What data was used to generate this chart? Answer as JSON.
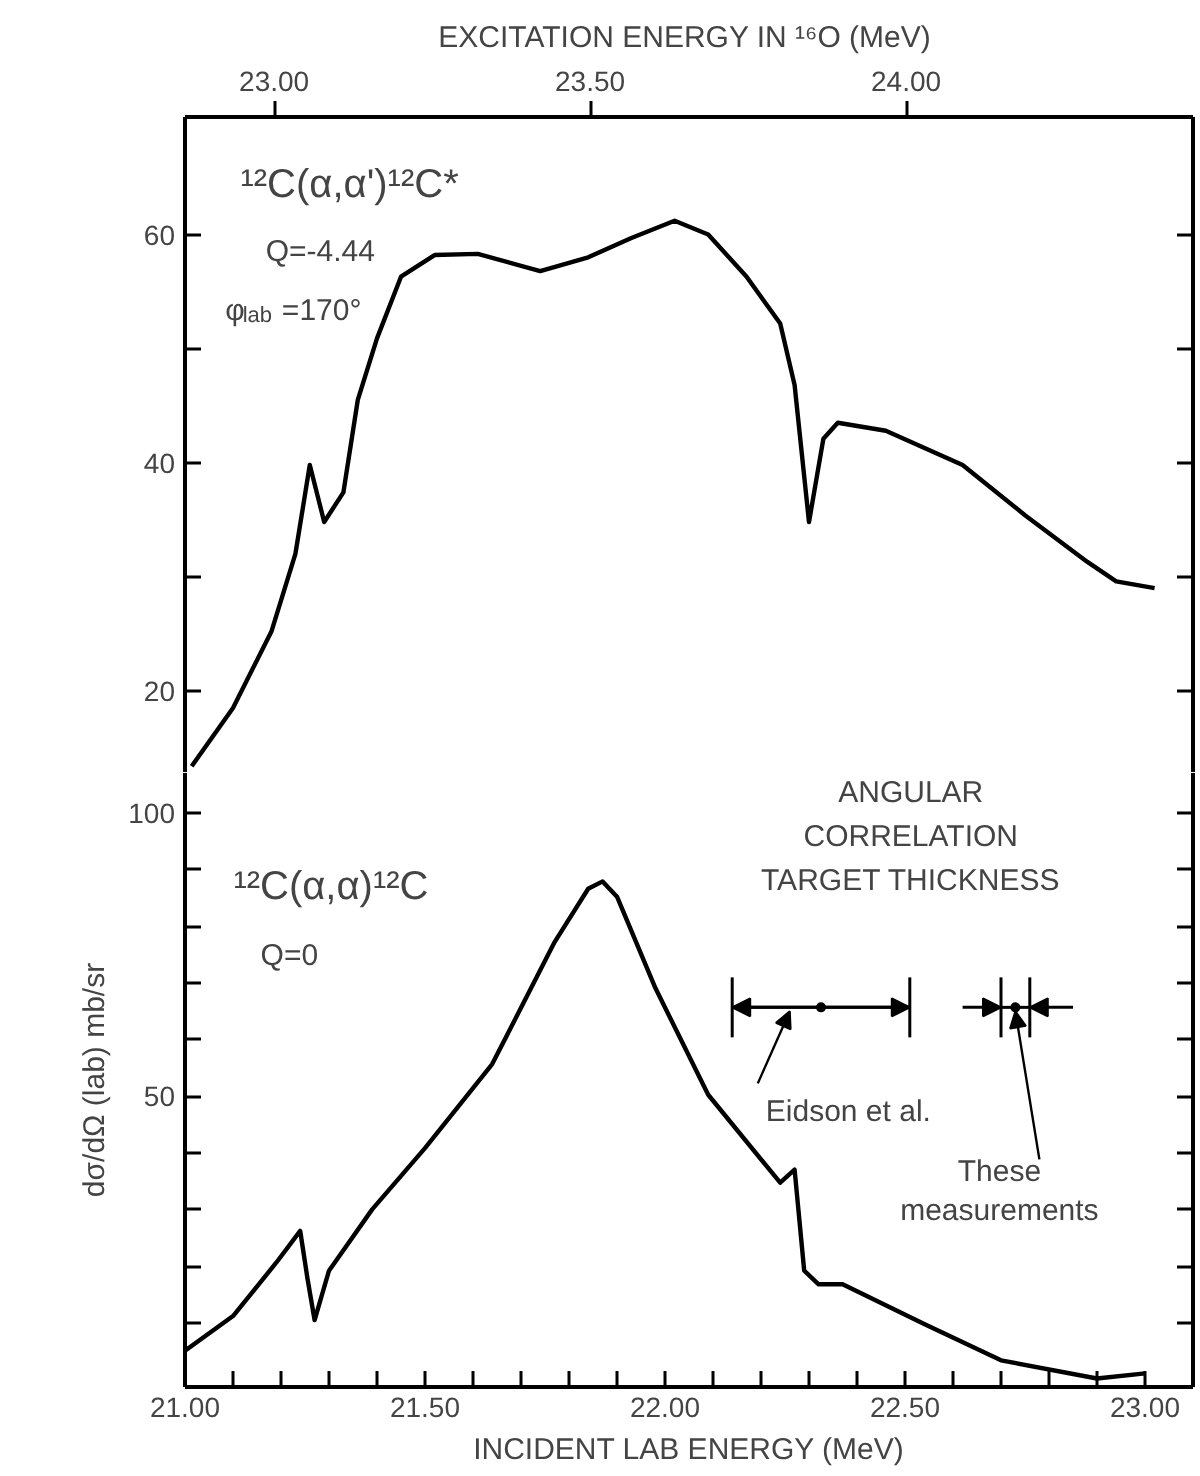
{
  "chart_data": [
    {
      "type": "line",
      "x2label": "EXCITATION ENERGY IN ¹⁶O  (MeV)",
      "xlim": [
        21.0,
        23.1
      ],
      "x2lim": [
        22.859,
        24.454
      ],
      "x2ticks": [
        {
          "value": 23.0,
          "label": "23.00"
        },
        {
          "value": 23.5,
          "label": "23.50"
        },
        {
          "value": 24.0,
          "label": "24.00"
        }
      ],
      "ylim": [
        12.8,
        70.3
      ],
      "yticks": [
        20,
        {
          "value": 30,
          "label": null
        },
        40,
        {
          "value": 50,
          "label": null
        },
        60
      ],
      "tick_labels": "y",
      "annotations": [
        "¹²C(α,α')¹²C*",
        "Q=-4.44",
        "φ$_{lab}$=170°"
      ],
      "series": [
        {
          "color": "#000000",
          "x": [
            21.014,
            21.1,
            21.18,
            21.23,
            21.26,
            21.29,
            21.33,
            21.36,
            21.4,
            21.45,
            21.52,
            21.61,
            21.74,
            21.84,
            21.93,
            22.02,
            22.09,
            22.17,
            22.24,
            22.27,
            22.3,
            22.33,
            22.36,
            22.46,
            22.62,
            22.75,
            22.88,
            22.94,
            23.02
          ],
          "values": [
            13.4,
            18.5,
            25.2,
            32.0,
            39.8,
            34.8,
            37.4,
            45.5,
            50.9,
            56.3,
            58.2,
            58.3,
            56.8,
            58.0,
            59.7,
            61.2,
            60.0,
            56.3,
            52.2,
            46.8,
            34.8,
            42.1,
            43.5,
            42.8,
            39.8,
            35.4,
            31.3,
            29.6,
            29.0
          ]
        }
      ]
    },
    {
      "type": "line",
      "xlabel": "INCIDENT LAB ENERGY (MeV)",
      "ylabel": "dσ/dΩ (lab) mb/sr",
      "xlim": [
        21.0,
        23.1
      ],
      "xticks": [
        {
          "value": 21.0,
          "label": "21.00"
        },
        {
          "value": 21.1,
          "label": null
        },
        {
          "value": 21.2,
          "label": null
        },
        {
          "value": 21.3,
          "label": null
        },
        {
          "value": 21.4,
          "label": null
        },
        {
          "value": 21.5,
          "label": "21.50"
        },
        {
          "value": 21.6,
          "label": null
        },
        {
          "value": 21.7,
          "label": null
        },
        {
          "value": 21.8,
          "label": null
        },
        {
          "value": 21.9,
          "label": null
        },
        {
          "value": 22.0,
          "label": "22.00"
        },
        {
          "value": 22.1,
          "label": null
        },
        {
          "value": 22.2,
          "label": null
        },
        {
          "value": 22.3,
          "label": null
        },
        {
          "value": 22.4,
          "label": null
        },
        {
          "value": 22.5,
          "label": "22.50"
        },
        {
          "value": 22.6,
          "label": null
        },
        {
          "value": 22.7,
          "label": null
        },
        {
          "value": 22.8,
          "label": null
        },
        {
          "value": 22.9,
          "label": null
        },
        {
          "value": 23.0,
          "label": "23.00"
        }
      ],
      "ylim": [
        -1.2,
        107
      ],
      "yticks": [
        {
          "value": 10,
          "label": null
        },
        {
          "value": 20,
          "label": null
        },
        {
          "value": 30,
          "label": null
        },
        {
          "value": 40,
          "label": null
        },
        50,
        {
          "value": 60,
          "label": null
        },
        {
          "value": 70,
          "label": null
        },
        {
          "value": 80,
          "label": null
        },
        {
          "value": 90,
          "label": null
        },
        100
      ],
      "annotations": [
        "¹²C(α,α)¹²C",
        "Q=0",
        "ANGULAR\nCORRELATION\nTARGET THICKNESS",
        {
          "text": "Eidson et al.",
          "x": 22.26,
          "y": 65.7
        },
        {
          "text": "These\nmeasurements",
          "x": 22.73,
          "y": 65.7
        }
      ],
      "series": [
        {
          "color": "#000000",
          "x": [
            21.0,
            21.1,
            21.19,
            21.24,
            21.255,
            21.27,
            21.3,
            21.39,
            21.5,
            21.64,
            21.77,
            21.84,
            21.87,
            21.9,
            21.98,
            22.09,
            22.24,
            22.27,
            22.29,
            22.32,
            22.37,
            22.54,
            22.7,
            22.9,
            23.0
          ],
          "values": [
            5.2,
            11.3,
            20.7,
            26.3,
            18.0,
            10.6,
            19.3,
            30.1,
            40.9,
            55.7,
            77.2,
            86.6,
            87.9,
            85.2,
            69.1,
            50.3,
            34.8,
            37.1,
            19.3,
            16.9,
            16.9,
            9.9,
            3.5,
            0.3,
            1.2
          ]
        },
        {
          "type": "scatter",
          "marker": "circle",
          "color": "#000000",
          "x": [
            22.325
          ],
          "values": [
            65.7
          ],
          "xerrors": [
            [
              22.14,
              22.51
            ]
          ]
        },
        {
          "type": "scatter",
          "marker": "circle",
          "color": "#000000",
          "x": [
            22.73
          ],
          "values": [
            65.7
          ],
          "xerrors": [
            [
              22.7,
              22.76
            ]
          ]
        }
      ]
    }
  ]
}
